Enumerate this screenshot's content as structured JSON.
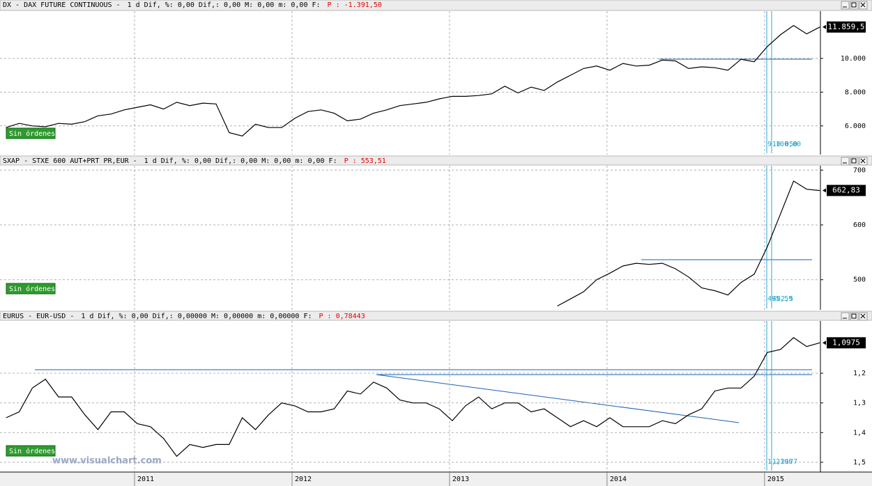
{
  "chart_data": [
    {
      "type": "line",
      "title": "DX - DAX FUTURE CONTINUOUS -",
      "stats": "1 d Dif,  %: 0,00 Dif,: 0,00 M: 0,00 m: 0,00 F:",
      "price": "P : -1.391,50",
      "color": "#000000",
      "values": [
        5900,
        6150,
        6000,
        5950,
        6150,
        6100,
        6250,
        6600,
        6700,
        6950,
        7100,
        7250,
        7000,
        7400,
        7200,
        7350,
        7300,
        5600,
        5400,
        6100,
        5900,
        5900,
        6450,
        6850,
        6950,
        6750,
        6300,
        6400,
        6750,
        6950,
        7200,
        7300,
        7400,
        7600,
        7750,
        7750,
        7800,
        7900,
        8350,
        7950,
        8300,
        8100,
        8600,
        9000,
        9400,
        9550,
        9300,
        9700,
        9550,
        9600,
        9900,
        9850,
        9400,
        9500,
        9450,
        9300,
        9950,
        9800,
        10700,
        11400,
        11950,
        11450,
        11859.5
      ],
      "last_label": "11.859,5",
      "ylim": [
        4300,
        12800
      ],
      "yticks": [
        {
          "value": 6000,
          "label": "6.000"
        },
        {
          "value": 8000,
          "label": "8.000"
        },
        {
          "value": 10000,
          "label": "10.000"
        }
      ],
      "grid": true,
      "orders": "Sin órdenes",
      "cursor_labels": [
        "9.100,00",
        "10.050"
      ]
    },
    {
      "type": "line",
      "title": "SXAP - STXE 600 AUT+PRT PR,EUR -",
      "stats": "1 d Dif,  %: 0,00 Dif,: 0,00 M: 0,00 m: 0,00 F:",
      "price": "P : 553,51",
      "color": "#000000",
      "values": [
        null,
        null,
        null,
        null,
        null,
        null,
        null,
        null,
        null,
        null,
        null,
        null,
        null,
        null,
        null,
        null,
        null,
        null,
        null,
        null,
        null,
        null,
        null,
        null,
        null,
        null,
        null,
        null,
        null,
        null,
        null,
        null,
        null,
        null,
        null,
        null,
        null,
        null,
        null,
        null,
        null,
        null,
        452,
        465,
        478,
        500,
        512,
        525,
        530,
        528,
        530,
        520,
        505,
        485,
        480,
        472,
        495,
        510,
        560,
        620,
        680,
        665,
        662.83
      ],
      "last_label": "662,83",
      "ylim": [
        445,
        708
      ],
      "yticks": [
        500,
        600,
        700
      ],
      "grid": true,
      "orders": "Sin órdenes",
      "cursor_labels": [
        "495,59",
        "482,5"
      ]
    },
    {
      "type": "line",
      "title": "EURUS - EUR-USD -",
      "stats": "1 d Dif,  %: 0,00 Dif,: 0,00000 M: 0,00000 m: 0,00000 F:",
      "price": "P : 0,78443",
      "color": "#000000",
      "values": [
        1.35,
        1.33,
        1.25,
        1.22,
        1.28,
        1.28,
        1.34,
        1.39,
        1.33,
        1.33,
        1.37,
        1.38,
        1.42,
        1.48,
        1.44,
        1.45,
        1.44,
        1.44,
        1.35,
        1.39,
        1.34,
        1.3,
        1.31,
        1.33,
        1.33,
        1.32,
        1.26,
        1.27,
        1.23,
        1.25,
        1.29,
        1.3,
        1.3,
        1.32,
        1.36,
        1.31,
        1.28,
        1.32,
        1.3,
        1.3,
        1.33,
        1.32,
        1.35,
        1.38,
        1.36,
        1.38,
        1.35,
        1.38,
        1.38,
        1.38,
        1.36,
        1.37,
        1.34,
        1.32,
        1.26,
        1.25,
        1.25,
        1.21,
        1.13,
        1.12,
        1.08,
        1.11,
        1.0975
      ],
      "last_label": "1,0975",
      "ylim": [
        1.533,
        1.024
      ],
      "yticks": [
        {
          "value": 1.2,
          "label": "1,2"
        },
        {
          "value": 1.3,
          "label": "1,3"
        },
        {
          "value": 1.4,
          "label": "1,4"
        },
        {
          "value": 1.5,
          "label": "1,5"
        }
      ],
      "grid": true,
      "orders": "Sin órdenes",
      "cursor_labels": [
        "1,2106",
        "1,2177"
      ]
    }
  ],
  "time_axis": {
    "categories": [
      null,
      null,
      null,
      null,
      null,
      null,
      null,
      null,
      null,
      null,
      "2011",
      null,
      null,
      null,
      null,
      null,
      null,
      null,
      null,
      null,
      null,
      null,
      "2012",
      null,
      null,
      null,
      null,
      null,
      null,
      null,
      null,
      null,
      null,
      null,
      "2013",
      null,
      null,
      null,
      null,
      null,
      null,
      null,
      null,
      null,
      null,
      null,
      "2014",
      null,
      null,
      null,
      null,
      null,
      null,
      null,
      null,
      null,
      null,
      null,
      "2015",
      null,
      null,
      null,
      null
    ]
  },
  "watermark": "www.visualchart.com"
}
